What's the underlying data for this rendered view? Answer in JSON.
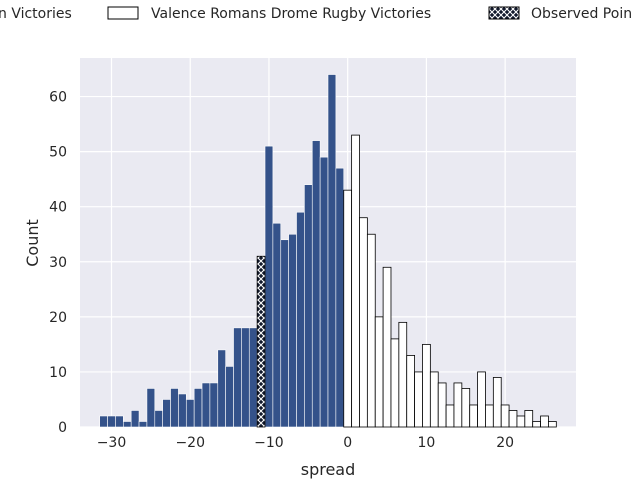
{
  "chart_data": {
    "type": "bar",
    "title": "",
    "xlabel": "spread",
    "ylabel": "Count",
    "xlim": [
      -34,
      29
    ],
    "ylim": [
      0,
      67
    ],
    "x_ticks": [
      -30,
      -20,
      -10,
      0,
      10,
      20
    ],
    "x_tick_labels": [
      "−30",
      "−20",
      "−10",
      "0",
      "10",
      "20"
    ],
    "y_ticks": [
      0,
      10,
      20,
      30,
      40,
      50,
      60
    ],
    "y_tick_labels": [
      "0",
      "10",
      "20",
      "30",
      "40",
      "50",
      "60"
    ],
    "grid": true,
    "legend_placement": "top (above plot, clipped at edges)",
    "legend": [
      {
        "label": "n Victories",
        "swatch": "none"
      },
      {
        "label": "Valence Romans Drome Rugby Victories",
        "swatch": "white"
      },
      {
        "label": "Observed Poin",
        "swatch": "hatched"
      }
    ],
    "colors": {
      "opponent": "#34528a",
      "valence": "#ffffff",
      "observed": "#11182b",
      "background": "#eaeaf2",
      "grid": "#ffffff"
    },
    "series": [
      {
        "name": "n Victories",
        "fill": "opponent",
        "x": [
          -31,
          -30,
          -29,
          -28,
          -27,
          -26,
          -25,
          -24,
          -23,
          -22,
          -21,
          -20,
          -19,
          -18,
          -17,
          -16,
          -15,
          -14,
          -13,
          -12,
          -10,
          -9,
          -8,
          -7,
          -6,
          -5,
          -4,
          -3,
          -2,
          -1
        ],
        "values": [
          2,
          2,
          2,
          1,
          3,
          1,
          7,
          3,
          5,
          7,
          6,
          5,
          7,
          8,
          8,
          14,
          11,
          18,
          18,
          18,
          51,
          37,
          34,
          35,
          39,
          44,
          52,
          49,
          64,
          47
        ]
      },
      {
        "name": "Valence Romans Drome Rugby Victories",
        "fill": "valence",
        "x": [
          0,
          1,
          2,
          3,
          4,
          5,
          6,
          7,
          8,
          9,
          10,
          11,
          12,
          13,
          14,
          15,
          16,
          17,
          18,
          19,
          20,
          21,
          22,
          23,
          24,
          25,
          26
        ],
        "values": [
          43,
          53,
          38,
          35,
          20,
          29,
          16,
          19,
          13,
          10,
          15,
          10,
          8,
          4,
          8,
          7,
          4,
          10,
          4,
          9,
          4,
          3,
          2,
          3,
          1,
          2,
          1
        ]
      },
      {
        "name": "Observed Poin",
        "fill": "observed",
        "x": [
          -11
        ],
        "values": [
          31
        ]
      }
    ]
  }
}
